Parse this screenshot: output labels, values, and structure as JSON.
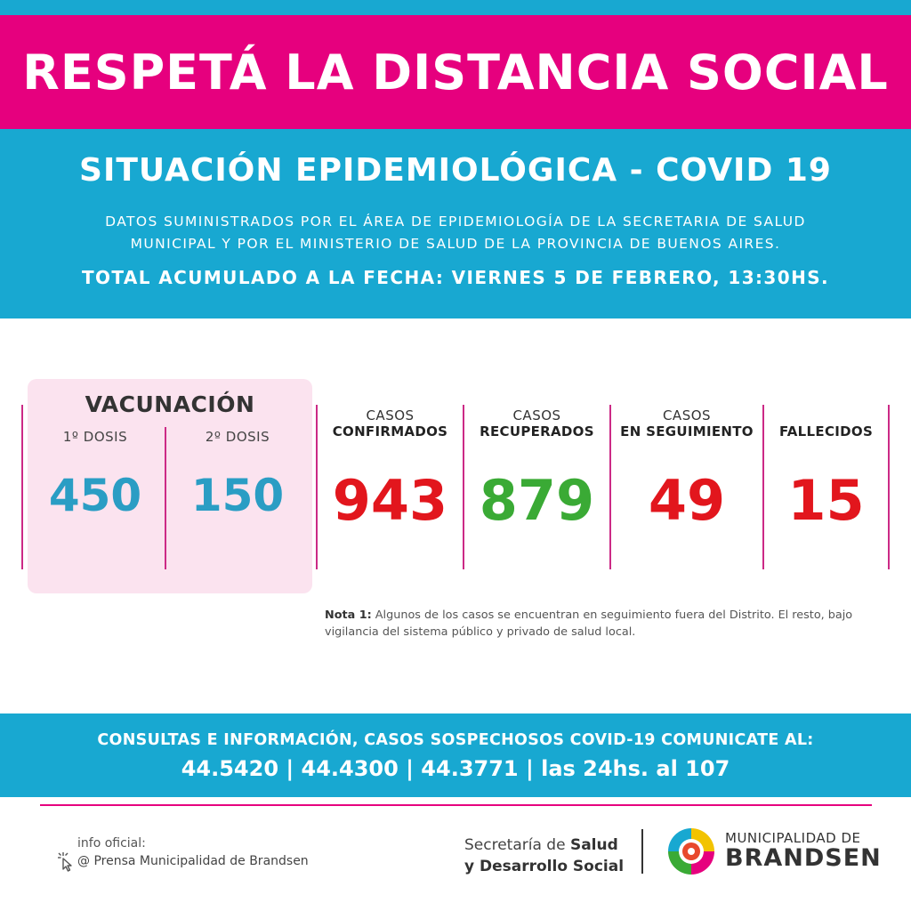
{
  "banner": {
    "title": "RESPETÁ LA DISTANCIA SOCIAL"
  },
  "header": {
    "title": "SITUACIÓN EPIDEMIOLÓGICA - COVID 19",
    "desc_line1": "DATOS SUMINISTRADOS POR EL ÁREA DE EPIDEMIOLOGÍA DE LA SECRETARIA DE SALUD",
    "desc_line2": "MUNICIPAL Y POR EL MINISTERIO DE SALUD DE LA PROVINCIA DE BUENOS AIRES.",
    "date": "TOTAL ACUMULADO A LA FECHA: VIERNES 5 DE FEBRERO, 13:30HS."
  },
  "vaccination": {
    "title": "VACUNACIÓN",
    "dose1_label": "1º DOSIS",
    "dose1_value": "450",
    "dose2_label": "2º DOSIS",
    "dose2_value": "150"
  },
  "stats": [
    {
      "line1": "CASOS",
      "line2": "CONFIRMADOS",
      "value": "943"
    },
    {
      "line1": "CASOS",
      "line2": "RECUPERADOS",
      "value": "879"
    },
    {
      "line1": "CASOS",
      "line2": "EN SEGUIMIENTO",
      "value": "49"
    },
    {
      "line1": "",
      "line2": "FALLECIDOS",
      "value": "15"
    }
  ],
  "note": {
    "label": "Nota 1:",
    "text": " Algunos de los casos se encuentran en seguimiento fuera del Distrito. El resto, bajo vigilancia del sistema público y privado de salud local."
  },
  "contact": {
    "line1": "CONSULTAS E INFORMACIÓN, CASOS SOSPECHOSOS COVID-19 COMUNICATE AL:",
    "line2": "44.5420 | 44.4300 | 44.3771 | las 24hs. al 107"
  },
  "footer": {
    "info_label": "info oficial:",
    "info_source": "@ Prensa Municipalidad de Brandsen",
    "secretaria_prefix": "Secretaría de ",
    "secretaria_bold1": "Salud",
    "secretaria_bold2": "y Desarrollo Social",
    "muni_line1": "MUNICIPALIDAD DE",
    "muni_line2": "BRANDSEN"
  },
  "colors": {
    "pink": "#e6007e",
    "blue": "#18a8d1",
    "vacc_number": "#2a9dc4",
    "red": "#e2161d",
    "green": "#3aaa35"
  }
}
